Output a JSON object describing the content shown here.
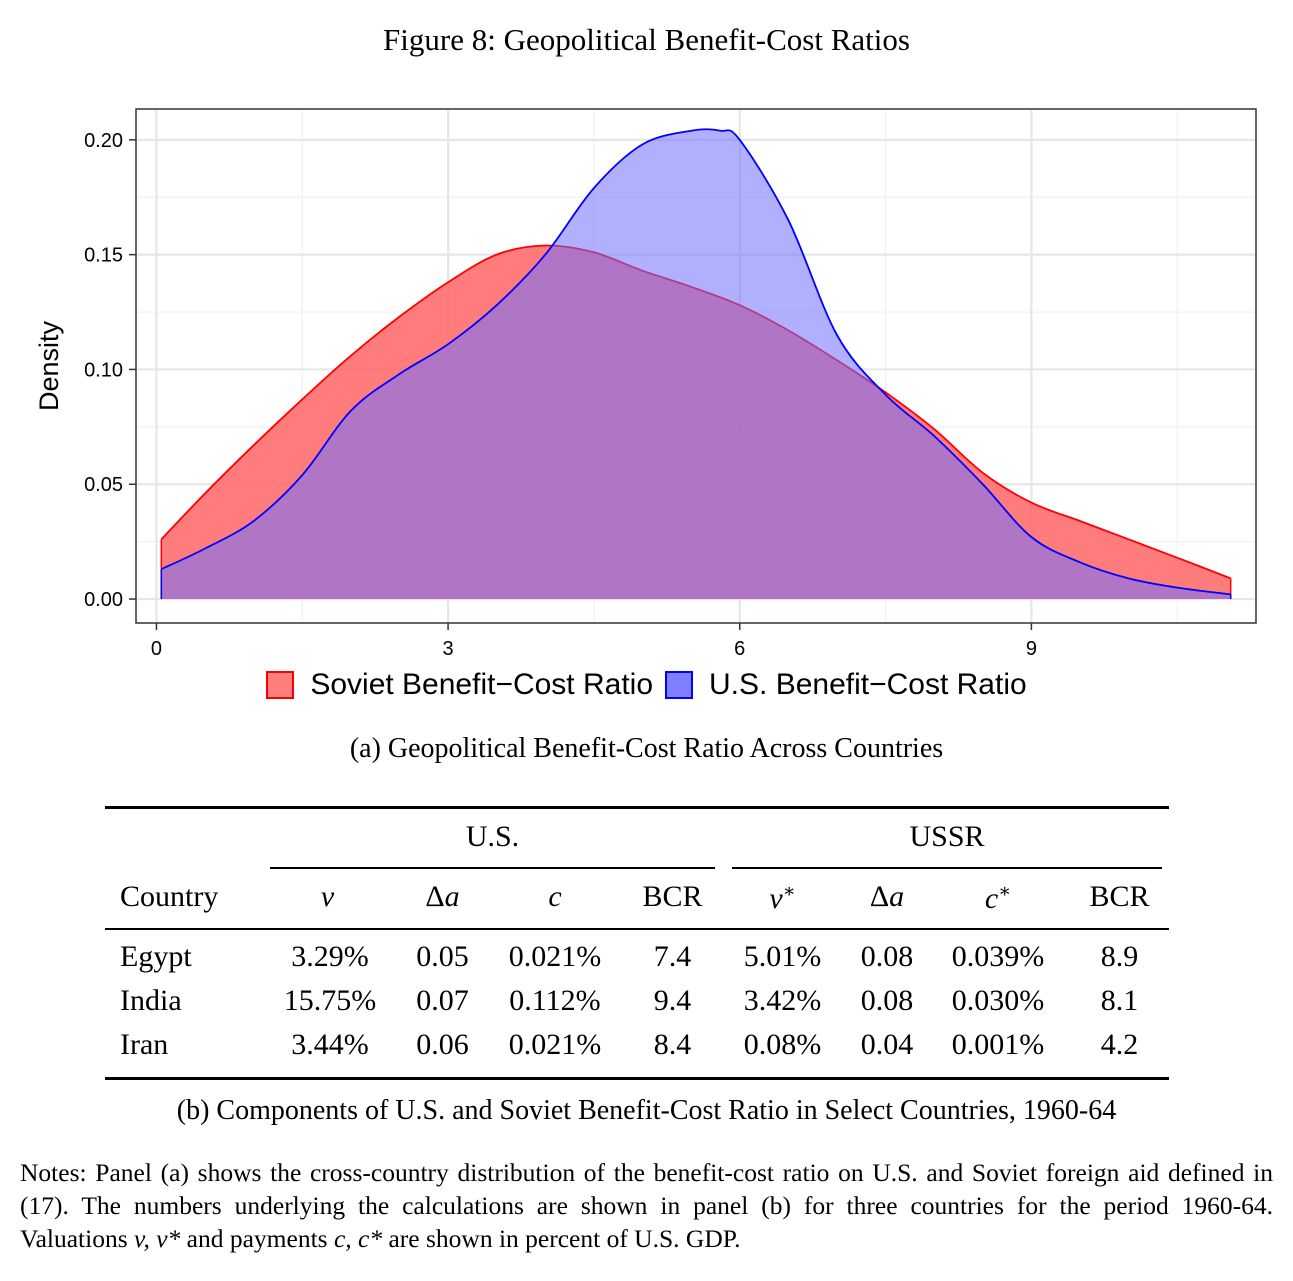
{
  "figure_title": "Figure 8: Geopolitical Benefit-Cost Ratios",
  "colors": {
    "soviet_fill": "#ff6a6a",
    "soviet_line": "#ff0000",
    "us_fill": "#6f6fff",
    "us_line": "#0000ff",
    "overlap": "#b8407a"
  },
  "chart_data": {
    "type": "area",
    "ylabel": "Density",
    "xlabel": "",
    "xlim": [
      -0.2,
      11.3
    ],
    "ylim": [
      -0.01,
      0.213
    ],
    "x_ticks": [
      0,
      3,
      6,
      9
    ],
    "x_tick_labels": [
      "0",
      "3",
      "6",
      "9"
    ],
    "y_ticks": [
      0.0,
      0.05,
      0.1,
      0.15,
      0.2
    ],
    "y_tick_labels": [
      "0.00",
      "0.05",
      "0.10",
      "0.15",
      "0.20"
    ],
    "grid": true,
    "legend_position": "bottom",
    "series": [
      {
        "name": "Soviet Benefit−Cost Ratio",
        "x": [
          0.05,
          0.5,
          1.0,
          1.5,
          2.0,
          2.5,
          3.0,
          3.5,
          4.0,
          4.5,
          5.0,
          5.5,
          6.0,
          6.5,
          7.0,
          7.5,
          8.0,
          8.5,
          9.0,
          9.5,
          10.0,
          10.5,
          11.05
        ],
        "y": [
          0.026,
          0.046,
          0.067,
          0.087,
          0.106,
          0.123,
          0.138,
          0.15,
          0.154,
          0.151,
          0.143,
          0.136,
          0.128,
          0.117,
          0.104,
          0.09,
          0.074,
          0.055,
          0.042,
          0.034,
          0.026,
          0.018,
          0.009
        ]
      },
      {
        "name": "U.S. Benefit−Cost Ratio",
        "x": [
          0.05,
          0.5,
          1.0,
          1.5,
          2.0,
          2.5,
          3.0,
          3.5,
          4.0,
          4.5,
          5.0,
          5.5,
          5.8,
          6.0,
          6.5,
          7.0,
          7.5,
          8.0,
          8.5,
          9.0,
          9.5,
          10.0,
          10.5,
          11.05
        ],
        "y": [
          0.013,
          0.022,
          0.034,
          0.054,
          0.082,
          0.098,
          0.111,
          0.128,
          0.15,
          0.179,
          0.198,
          0.204,
          0.204,
          0.2,
          0.165,
          0.115,
          0.089,
          0.071,
          0.05,
          0.027,
          0.016,
          0.009,
          0.005,
          0.002
        ]
      }
    ]
  },
  "legend": {
    "soviet": "Soviet Benefit−Cost Ratio",
    "us": "U.S. Benefit−Cost Ratio"
  },
  "caption_a": "(a) Geopolitical Benefit-Cost Ratio Across Countries",
  "table": {
    "group_us": "U.S.",
    "group_ussr": "USSR",
    "col_country": "Country",
    "col_v": "v",
    "col_da": "Δa",
    "col_c": "c",
    "col_bcr": "BCR",
    "col_vstar": "v*",
    "col_da2": "Δa",
    "col_cstar": "c*",
    "col_bcr2": "BCR",
    "rows": [
      {
        "country": "Egypt",
        "v": "3.29%",
        "da": "0.05",
        "c": "0.021%",
        "bcr": "7.4",
        "vs": "5.01%",
        "da2": "0.08",
        "cs": "0.039%",
        "bcr2": "8.9"
      },
      {
        "country": "India",
        "v": "15.75%",
        "da": "0.07",
        "c": "0.112%",
        "bcr": "9.4",
        "vs": "3.42%",
        "da2": "0.08",
        "cs": "0.030%",
        "bcr2": "8.1"
      },
      {
        "country": "Iran",
        "v": "3.44%",
        "da": "0.06",
        "c": "0.021%",
        "bcr": "8.4",
        "vs": "0.08%",
        "da2": "0.04",
        "cs": "0.001%",
        "bcr2": "4.2"
      }
    ]
  },
  "caption_b": "(b) Components of U.S. and Soviet Benefit-Cost Ratio in Select Countries, 1960-64",
  "notes": {
    "part1": "Notes: Panel (a) shows the cross-country distribution of the benefit-cost ratio on U.S. and Soviet foreign aid defined in (17). The numbers underlying the calculations are shown in panel (b) for three countries for the period 1960-64. Valuations ",
    "math1": "v, v*",
    "part2": " and payments ",
    "math2": "c, c*",
    "part3": " are shown in percent of U.S. GDP."
  }
}
